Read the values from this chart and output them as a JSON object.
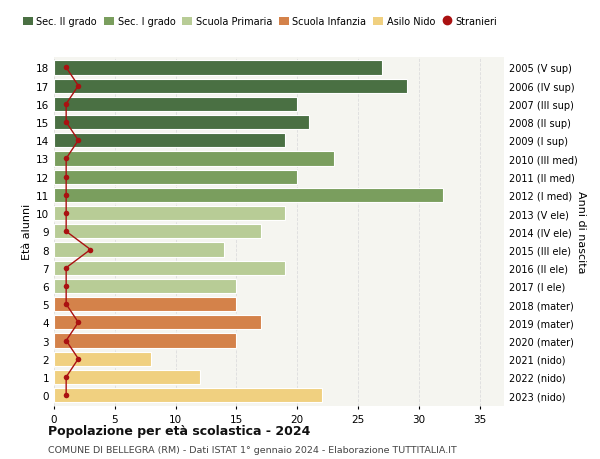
{
  "ages": [
    18,
    17,
    16,
    15,
    14,
    13,
    12,
    11,
    10,
    9,
    8,
    7,
    6,
    5,
    4,
    3,
    2,
    1,
    0
  ],
  "labels_right": [
    "2005 (V sup)",
    "2006 (IV sup)",
    "2007 (III sup)",
    "2008 (II sup)",
    "2009 (I sup)",
    "2010 (III med)",
    "2011 (II med)",
    "2012 (I med)",
    "2013 (V ele)",
    "2014 (IV ele)",
    "2015 (III ele)",
    "2016 (II ele)",
    "2017 (I ele)",
    "2018 (mater)",
    "2019 (mater)",
    "2020 (mater)",
    "2021 (nido)",
    "2022 (nido)",
    "2023 (nido)"
  ],
  "bar_values": [
    27,
    29,
    20,
    21,
    19,
    23,
    20,
    32,
    19,
    17,
    14,
    19,
    15,
    15,
    17,
    15,
    8,
    12,
    22
  ],
  "bar_colors": [
    "#4a7043",
    "#4a7043",
    "#4a7043",
    "#4a7043",
    "#4a7043",
    "#7a9e5e",
    "#7a9e5e",
    "#7a9e5e",
    "#b8cc96",
    "#b8cc96",
    "#b8cc96",
    "#b8cc96",
    "#b8cc96",
    "#d4824a",
    "#d4824a",
    "#d4824a",
    "#f0d080",
    "#f0d080",
    "#f0d080"
  ],
  "stranieri_values": [
    1,
    2,
    1,
    1,
    2,
    1,
    1,
    1,
    1,
    1,
    3,
    1,
    1,
    1,
    2,
    1,
    2,
    1,
    1
  ],
  "stranieri_color": "#aa1111",
  "title_bold": "Popolazione per età scolastica - 2024",
  "subtitle": "COMUNE DI BELLEGRA (RM) - Dati ISTAT 1° gennaio 2024 - Elaborazione TUTTITALIA.IT",
  "ylabel": "Età alunni",
  "ylabel_right": "Anni di nascita",
  "xlim": [
    0,
    37
  ],
  "xticks": [
    0,
    5,
    10,
    15,
    20,
    25,
    30,
    35
  ],
  "legend_labels": [
    "Sec. II grado",
    "Sec. I grado",
    "Scuola Primaria",
    "Scuola Infanzia",
    "Asilo Nido",
    "Stranieri"
  ],
  "legend_colors": [
    "#4a7043",
    "#7a9e5e",
    "#b8cc96",
    "#d4824a",
    "#f0d080",
    "#aa1111"
  ],
  "bg_color": "#ffffff",
  "grid_color": "#dddddd",
  "bar_height": 0.78
}
